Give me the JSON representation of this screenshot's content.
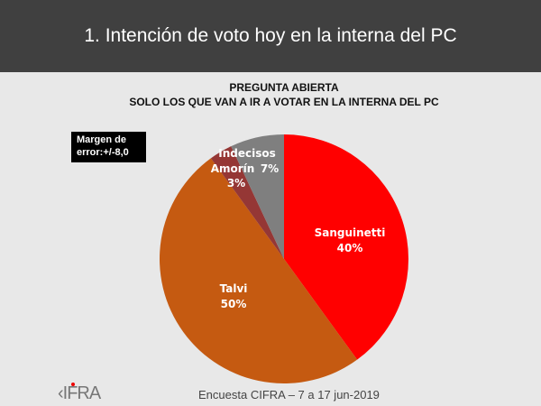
{
  "header": {
    "title": "1. Intención de voto hoy en la interna del PC"
  },
  "subtitle": {
    "line1": "PREGUNTA ABIERTA",
    "line2": "SOLO LOS QUE VAN A IR A VOTAR EN LA INTERNA DEL  PC"
  },
  "margin_note": {
    "line1": "Margen de",
    "line2": "error:+/-8,0"
  },
  "footer": {
    "source": "Encuesta CIFRA – 7 a 17 jun-2019",
    "logo": "CIFRA"
  },
  "chart_data": {
    "type": "pie",
    "title": "1. Intención de voto hoy en la interna del PC",
    "start": "top",
    "direction": "clockwise",
    "slices": [
      {
        "name": "Sanguinetti",
        "value": 40,
        "label": "40%",
        "color": "#ff0000"
      },
      {
        "name": "Talvi",
        "value": 50,
        "label": "50%",
        "color": "#c55a11"
      },
      {
        "name": "Amorín",
        "value": 3,
        "label": "3%",
        "color": "#953735"
      },
      {
        "name": "Indecisos",
        "value": 7,
        "label": "7%",
        "color": "#7f7f7f"
      }
    ]
  }
}
